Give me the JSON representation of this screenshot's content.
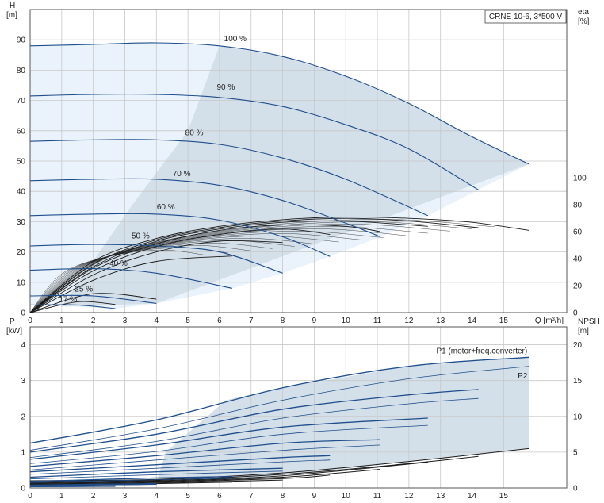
{
  "colors": {
    "curve": "#1f4e8c",
    "eff_curve": "#1a1a1a",
    "envelope": "#d3dfe9",
    "envelope_light": "#eaf3fb",
    "grid": "#c8c8c8",
    "axis": "#555555"
  },
  "chart_data": [
    {
      "type": "line",
      "title": "CRNE 10-6, 3*500 V",
      "xlabel": "Q [m³/h]",
      "ylabel_left": "H\n[m]",
      "ylabel_right": "eta\n[%]",
      "xlim": [
        0,
        17
      ],
      "ylim": [
        0,
        100
      ],
      "y2lim": [
        0,
        225
      ],
      "x_ticks": [
        0,
        1,
        2,
        3,
        4,
        5,
        6,
        7,
        8,
        9,
        10,
        11,
        12,
        13,
        14,
        15
      ],
      "y_ticks": [
        0,
        10,
        20,
        30,
        40,
        50,
        60,
        70,
        80,
        90
      ],
      "y2_ticks": [
        0,
        20,
        40,
        60,
        80,
        100
      ],
      "head_curves": [
        {
          "name": "100 %",
          "x": [
            0,
            2,
            4,
            6,
            8,
            10,
            12,
            14,
            15.8
          ],
          "y": [
            88,
            88.5,
            89,
            88,
            84.5,
            78,
            69,
            58,
            49
          ]
        },
        {
          "name": "90 %",
          "x": [
            0,
            2,
            4,
            6,
            8,
            10,
            12,
            14.2
          ],
          "y": [
            71.5,
            72,
            72,
            71,
            68,
            62,
            54,
            40.5
          ]
        },
        {
          "name": "80 %",
          "x": [
            0,
            2,
            4,
            6,
            8,
            10,
            12.6
          ],
          "y": [
            56.5,
            57,
            57,
            55.5,
            51,
            44,
            32
          ]
        },
        {
          "name": "70 %",
          "x": [
            0,
            2,
            4,
            6,
            8,
            10,
            11.1
          ],
          "y": [
            43.5,
            44,
            44,
            42,
            37,
            29.5,
            25
          ]
        },
        {
          "name": "60 %",
          "x": [
            0,
            2,
            4,
            6,
            8,
            9.5
          ],
          "y": [
            32,
            32.5,
            32.5,
            30.5,
            25,
            18.5
          ]
        },
        {
          "name": "50 %",
          "x": [
            0,
            2,
            4,
            6,
            8
          ],
          "y": [
            22,
            22.5,
            22,
            20,
            13
          ]
        },
        {
          "name": "40 %",
          "x": [
            0,
            2,
            4,
            6.4
          ],
          "y": [
            14,
            14.5,
            13,
            8
          ]
        },
        {
          "name": "25 %",
          "x": [
            0,
            2,
            4
          ],
          "y": [
            5.5,
            5.5,
            3
          ]
        },
        {
          "name": "17 %",
          "x": [
            0,
            1.5,
            2.7
          ],
          "y": [
            2.5,
            2.5,
            1.3
          ]
        }
      ],
      "efficiency_curves": [
        {
          "x": [
            0,
            2,
            4,
            6,
            8,
            10,
            12,
            14,
            15.8
          ],
          "y": [
            0,
            38,
            55,
            64,
            69,
            71,
            70,
            67,
            61
          ]
        },
        {
          "x": [
            0,
            2,
            4,
            6,
            8,
            10,
            12,
            14.2
          ],
          "y": [
            0,
            36,
            54,
            63,
            68,
            70,
            68,
            63
          ]
        },
        {
          "x": [
            0,
            2,
            4,
            6,
            8,
            10,
            12.6
          ],
          "y": [
            0,
            34,
            53,
            62,
            67,
            68,
            64
          ]
        },
        {
          "x": [
            0,
            2,
            4,
            6,
            8,
            10,
            11.1
          ],
          "y": [
            0,
            33,
            51,
            61,
            65,
            64,
            60
          ]
        },
        {
          "x": [
            0,
            2,
            4,
            6,
            8,
            9.5
          ],
          "y": [
            0,
            31,
            49,
            58,
            62,
            58
          ]
        },
        {
          "x": [
            0,
            2,
            4,
            6,
            8
          ],
          "y": [
            0,
            28,
            45,
            53,
            52
          ]
        },
        {
          "x": [
            0,
            2,
            4,
            6.4
          ],
          "y": [
            0,
            24,
            38,
            42
          ]
        },
        {
          "x": [
            0,
            2,
            4
          ],
          "y": [
            0,
            14,
            10
          ]
        },
        {
          "x": [
            0,
            1.5,
            2.7
          ],
          "y": [
            0,
            8,
            6
          ]
        }
      ],
      "curve_labels": [
        "100 %",
        "90 %",
        "80 %",
        "70 %",
        "60 %",
        "50 %",
        "40 %",
        "25 %",
        "17 %"
      ]
    },
    {
      "type": "line",
      "xlabel": "",
      "ylabel_left": "P\n[kW]",
      "ylabel_right": "NPSH\n[m]",
      "xlim": [
        0,
        17
      ],
      "ylim": [
        0,
        4.5
      ],
      "y2lim": [
        0,
        22.5
      ],
      "x_ticks": [
        0,
        1,
        2,
        3,
        4,
        5,
        6,
        7,
        8,
        9,
        10,
        11,
        12,
        13,
        14,
        15
      ],
      "y_ticks": [
        0,
        1,
        2,
        3,
        4
      ],
      "y2_ticks": [
        0,
        5,
        10,
        15,
        20
      ],
      "p1_label": "P1 (motor+freq.converter)",
      "p2_label": "P2",
      "power_curves_p1": [
        {
          "x": [
            0,
            4,
            8,
            12,
            15.8
          ],
          "y": [
            1.25,
            1.9,
            2.8,
            3.4,
            3.65
          ]
        },
        {
          "x": [
            0,
            4,
            8,
            12,
            14.2
          ],
          "y": [
            1.0,
            1.5,
            2.2,
            2.6,
            2.75
          ]
        },
        {
          "x": [
            0,
            4,
            8,
            12.6
          ],
          "y": [
            0.8,
            1.2,
            1.7,
            1.95
          ]
        },
        {
          "x": [
            0,
            4,
            8,
            11.1
          ],
          "y": [
            0.6,
            0.9,
            1.25,
            1.35
          ]
        },
        {
          "x": [
            0,
            4,
            8,
            9.5
          ],
          "y": [
            0.45,
            0.65,
            0.85,
            0.9
          ]
        },
        {
          "x": [
            0,
            4,
            8
          ],
          "y": [
            0.3,
            0.45,
            0.55
          ]
        },
        {
          "x": [
            0,
            4,
            6.4
          ],
          "y": [
            0.18,
            0.28,
            0.32
          ]
        },
        {
          "x": [
            0,
            4
          ],
          "y": [
            0.08,
            0.12
          ]
        },
        {
          "x": [
            0,
            2.7
          ],
          "y": [
            0.04,
            0.05
          ]
        }
      ],
      "power_curves_p2": [
        {
          "x": [
            0,
            4,
            8,
            12,
            15.8
          ],
          "y": [
            1.05,
            1.65,
            2.45,
            3.05,
            3.4
          ]
        },
        {
          "x": [
            0,
            4,
            8,
            12,
            14.2
          ],
          "y": [
            0.85,
            1.3,
            1.95,
            2.35,
            2.5
          ]
        },
        {
          "x": [
            0,
            4,
            8,
            12.6
          ],
          "y": [
            0.68,
            1.02,
            1.5,
            1.75
          ]
        },
        {
          "x": [
            0,
            4,
            8,
            11.1
          ],
          "y": [
            0.5,
            0.78,
            1.05,
            1.2
          ]
        },
        {
          "x": [
            0,
            4,
            8,
            9.5
          ],
          "y": [
            0.38,
            0.55,
            0.73,
            0.78
          ]
        },
        {
          "x": [
            0,
            4,
            8
          ],
          "y": [
            0.25,
            0.37,
            0.47
          ]
        },
        {
          "x": [
            0,
            4,
            6.4
          ],
          "y": [
            0.15,
            0.23,
            0.27
          ]
        },
        {
          "x": [
            0,
            4
          ],
          "y": [
            0.06,
            0.1
          ]
        },
        {
          "x": [
            0,
            2.7
          ],
          "y": [
            0.03,
            0.04
          ]
        }
      ],
      "npsh_curves": [
        {
          "x": [
            0,
            4,
            8,
            12,
            15.8
          ],
          "y": [
            1.0,
            1.2,
            2.1,
            3.7,
            5.5
          ]
        },
        {
          "x": [
            0,
            4,
            8,
            12,
            14.2
          ],
          "y": [
            0.9,
            1.1,
            1.9,
            3.4,
            4.4
          ]
        },
        {
          "x": [
            0,
            4,
            8,
            12.6
          ],
          "y": [
            0.8,
            1.0,
            1.7,
            3.6
          ]
        },
        {
          "x": [
            0,
            4,
            8,
            11.1
          ],
          "y": [
            0.7,
            0.9,
            1.5,
            2.6
          ]
        },
        {
          "x": [
            0,
            4,
            8,
            9.5
          ],
          "y": [
            0.6,
            0.8,
            1.3,
            1.8
          ]
        },
        {
          "x": [
            0,
            4,
            8
          ],
          "y": [
            0.5,
            0.7,
            1.1
          ]
        },
        {
          "x": [
            0,
            4,
            6.4
          ],
          "y": [
            0.4,
            0.6,
            0.8
          ]
        },
        {
          "x": [
            0,
            4
          ],
          "y": [
            0.3,
            0.5
          ]
        },
        {
          "x": [
            0,
            2.7
          ],
          "y": [
            0.2,
            0.3
          ]
        }
      ]
    }
  ]
}
